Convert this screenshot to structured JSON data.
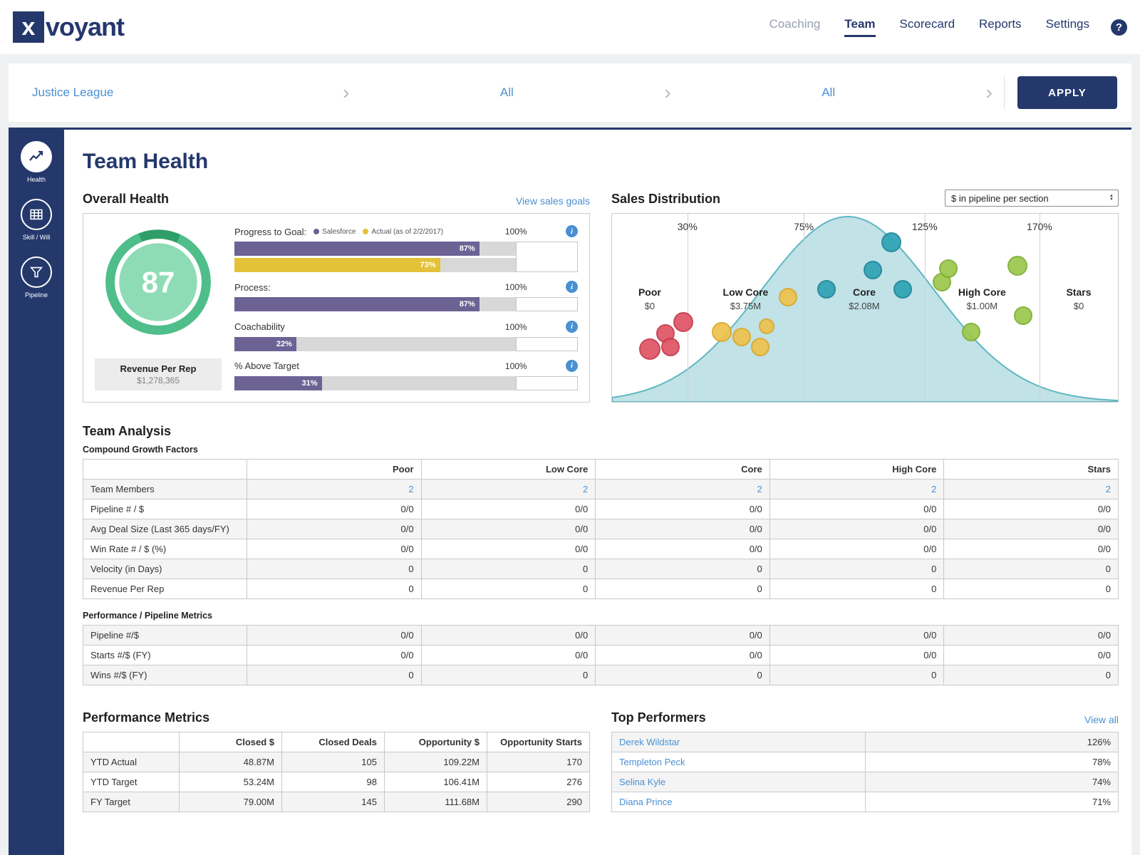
{
  "colors": {
    "navy": "#24386c",
    "link_blue": "#4a90d2",
    "bar_purple": "#6c6394",
    "bar_yellow": "#e3c23a",
    "gauge_ring": "#4fbe8a",
    "gauge_ring_dark": "#2f9e68",
    "gauge_inner": "#8edcb6",
    "curve_fill": "#b2dbe0",
    "curve_stroke": "#5fb7c3"
  },
  "header": {
    "logo_x": "x",
    "logo_rest": "voyant",
    "help_label": "?",
    "nav": [
      {
        "label": "Coaching",
        "dim": true
      },
      {
        "label": "Team",
        "active": true
      },
      {
        "label": "Scorecard"
      },
      {
        "label": "Reports"
      },
      {
        "label": "Settings"
      }
    ]
  },
  "filters": {
    "values": [
      "Justice League",
      "All",
      "All"
    ],
    "apply_label": "APPLY"
  },
  "sidebar": {
    "items": [
      {
        "label": "Health",
        "active": true
      },
      {
        "label": "Skill / Will"
      },
      {
        "label": "Pipeline"
      }
    ]
  },
  "page_title": "Team Health",
  "overall_health": {
    "title": "Overall Health",
    "link_label": "View sales goals",
    "score": "87",
    "score_value": 87,
    "revenue_label": "Revenue Per Rep",
    "revenue_value": "$1,278,365",
    "metrics": [
      {
        "label": "Progress to Goal:",
        "max": "100%",
        "legend": [
          {
            "label": "Salesforce",
            "color": "#6c6394"
          },
          {
            "label": "Actual (as of 2/2/2017)",
            "color": "#e3c23a"
          }
        ],
        "bars": [
          {
            "value": 87,
            "label": "87%",
            "color": "#6c6394"
          },
          {
            "value": 73,
            "label": "73%",
            "color": "#e3c23a"
          }
        ]
      },
      {
        "label": "Process:",
        "max": "100%",
        "bars": [
          {
            "value": 87,
            "label": "87%",
            "color": "#6c6394"
          }
        ]
      },
      {
        "label": "Coachability",
        "max": "100%",
        "bars": [
          {
            "value": 22,
            "label": "22%",
            "color": "#6c6394"
          }
        ]
      },
      {
        "label": "% Above Target",
        "max": "100%",
        "bars": [
          {
            "value": 31,
            "label": "31%",
            "color": "#6c6394"
          }
        ]
      }
    ]
  },
  "sales_distribution": {
    "title": "Sales Distribution",
    "dropdown_value": "$ in pipeline per section",
    "chart_data": {
      "type": "distribution-scatter",
      "ticks": [
        {
          "label": "30%",
          "x_pct": 14.9
        },
        {
          "label": "75%",
          "x_pct": 37.9
        },
        {
          "label": "125%",
          "x_pct": 61.8
        },
        {
          "label": "170%",
          "x_pct": 84.5
        }
      ],
      "segments": [
        {
          "label": "Poor",
          "value": "$0",
          "x_pct": 7.45
        },
        {
          "label": "Low Core",
          "value": "$3.75M",
          "x_pct": 26.4
        },
        {
          "label": "Core",
          "value": "$2.08M",
          "x_pct": 49.85
        },
        {
          "label": "High Core",
          "value": "$1.00M",
          "x_pct": 73.15
        },
        {
          "label": "Stars",
          "value": "$0",
          "x_pct": 92.25
        }
      ],
      "curve": {
        "mu_pct": 46.6,
        "sigma_pct": 17,
        "peak_y_pct": 1.5
      },
      "bubble_styles": {
        "red": {
          "fill": "#e05667",
          "stroke": "#c43a4b"
        },
        "yellow": {
          "fill": "#eec24e",
          "stroke": "#d9a92c"
        },
        "teal": {
          "fill": "#2fa3b4",
          "stroke": "#1d8799"
        },
        "green": {
          "fill": "#9cc84e",
          "stroke": "#7fae34"
        }
      },
      "bubbles": [
        {
          "x": 7.4,
          "y": 72.0,
          "r": 15,
          "c": "red"
        },
        {
          "x": 10.6,
          "y": 63.5,
          "r": 13,
          "c": "red"
        },
        {
          "x": 11.5,
          "y": 71.0,
          "r": 13,
          "c": "red"
        },
        {
          "x": 14.1,
          "y": 57.5,
          "r": 14,
          "c": "red"
        },
        {
          "x": 21.7,
          "y": 63.0,
          "r": 14,
          "c": "yellow"
        },
        {
          "x": 25.6,
          "y": 65.5,
          "r": 13,
          "c": "yellow"
        },
        {
          "x": 29.3,
          "y": 71.0,
          "r": 13,
          "c": "yellow"
        },
        {
          "x": 30.5,
          "y": 60.0,
          "r": 11,
          "c": "yellow"
        },
        {
          "x": 34.8,
          "y": 44.5,
          "r": 13,
          "c": "yellow"
        },
        {
          "x": 42.4,
          "y": 40.0,
          "r": 13,
          "c": "teal"
        },
        {
          "x": 51.6,
          "y": 30.0,
          "r": 13,
          "c": "teal"
        },
        {
          "x": 55.2,
          "y": 15.0,
          "r": 14,
          "c": "teal"
        },
        {
          "x": 57.4,
          "y": 40.0,
          "r": 13,
          "c": "teal"
        },
        {
          "x": 65.2,
          "y": 36.5,
          "r": 13,
          "c": "green"
        },
        {
          "x": 66.5,
          "y": 29.0,
          "r": 13,
          "c": "green"
        },
        {
          "x": 71.0,
          "y": 63.0,
          "r": 13,
          "c": "green"
        },
        {
          "x": 80.1,
          "y": 27.5,
          "r": 14,
          "c": "green"
        },
        {
          "x": 81.3,
          "y": 54.0,
          "r": 13,
          "c": "green"
        }
      ]
    }
  },
  "team_analysis": {
    "title": "Team Analysis",
    "growth_title": "Compound Growth Factors",
    "columns": [
      "Poor",
      "Low Core",
      "Core",
      "High Core",
      "Stars"
    ],
    "growth_rows": [
      {
        "label": "Team Members",
        "values": [
          "2",
          "2",
          "2",
          "2",
          "2"
        ],
        "link": true
      },
      {
        "label": "Pipeline # / $",
        "values": [
          "0/0",
          "0/0",
          "0/0",
          "0/0",
          "0/0"
        ]
      },
      {
        "label": "Avg Deal Size (Last 365 days/FY)",
        "values": [
          "0/0",
          "0/0",
          "0/0",
          "0/0",
          "0/0"
        ]
      },
      {
        "label": "Win Rate # / $ (%)",
        "values": [
          "0/0",
          "0/0",
          "0/0",
          "0/0",
          "0/0"
        ]
      },
      {
        "label": "Velocity (in Days)",
        "values": [
          "0",
          "0",
          "0",
          "0",
          "0"
        ]
      },
      {
        "label": "Revenue Per Rep",
        "values": [
          "0",
          "0",
          "0",
          "0",
          "0"
        ]
      }
    ],
    "pipeline_title": "Performance / Pipeline Metrics",
    "pipeline_rows": [
      {
        "label": "Pipeline #/$",
        "values": [
          "0/0",
          "0/0",
          "0/0",
          "0/0",
          "0/0"
        ]
      },
      {
        "label": "Starts #/$ (FY)",
        "values": [
          "0/0",
          "0/0",
          "0/0",
          "0/0",
          "0/0"
        ]
      },
      {
        "label": "Wins #/$ (FY)",
        "values": [
          "0",
          "0",
          "0",
          "0",
          "0"
        ]
      }
    ]
  },
  "performance_metrics": {
    "title": "Performance Metrics",
    "columns": [
      "Closed $",
      "Closed Deals",
      "Opportunity $",
      "Opportunity Starts"
    ],
    "rows": [
      {
        "label": "YTD Actual",
        "values": [
          "48.87M",
          "105",
          "109.22M",
          "170"
        ]
      },
      {
        "label": "YTD Target",
        "values": [
          "53.24M",
          "98",
          "106.41M",
          "276"
        ]
      },
      {
        "label": "FY Target",
        "values": [
          "79.00M",
          "145",
          "111.68M",
          "290"
        ]
      }
    ]
  },
  "top_performers": {
    "title": "Top Performers",
    "link_label": "View all",
    "rows": [
      {
        "name": "Derek Wildstar",
        "value": "126%"
      },
      {
        "name": "Templeton Peck",
        "value": "78%"
      },
      {
        "name": "Selina Kyle",
        "value": "74%"
      },
      {
        "name": "Diana Prince",
        "value": "71%"
      }
    ]
  }
}
